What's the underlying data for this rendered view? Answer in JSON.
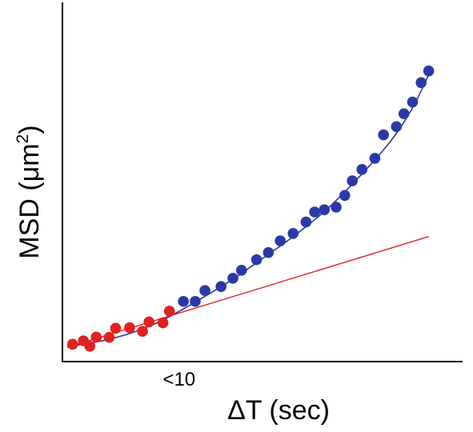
{
  "chart_data": {
    "type": "scatter",
    "xlabel": "ΔT (sec)",
    "ylabel_main": "MSD (μm",
    "ylabel_sup": "2",
    "ylabel_close": ")",
    "xlim": [
      0,
      34
    ],
    "ylim": [
      0,
      100
    ],
    "x_tick_labels": [
      {
        "x": 10.4,
        "label": "<10"
      }
    ],
    "series": [
      {
        "color": "#e32020",
        "points": [
          {
            "x": 0.5,
            "y": 1.6
          },
          {
            "x": 1.5,
            "y": 2.8
          },
          {
            "x": 2.1,
            "y": 0.9
          },
          {
            "x": 2.7,
            "y": 4.1
          },
          {
            "x": 3.9,
            "y": 4.0
          },
          {
            "x": 4.5,
            "y": 7.2
          },
          {
            "x": 5.8,
            "y": 7.4
          },
          {
            "x": 7.0,
            "y": 6.1
          },
          {
            "x": 7.6,
            "y": 9.4
          },
          {
            "x": 8.9,
            "y": 9.1
          },
          {
            "x": 9.5,
            "y": 13.2
          }
        ]
      },
      {
        "color": "#2b39a8",
        "points": [
          {
            "x": 10.8,
            "y": 16.6
          },
          {
            "x": 11.9,
            "y": 16.6
          },
          {
            "x": 12.8,
            "y": 20.4
          },
          {
            "x": 14.3,
            "y": 21.8
          },
          {
            "x": 15.4,
            "y": 24.7
          },
          {
            "x": 16.2,
            "y": 27.5
          },
          {
            "x": 17.6,
            "y": 31.2
          },
          {
            "x": 18.7,
            "y": 33.7
          },
          {
            "x": 19.8,
            "y": 37.8
          },
          {
            "x": 21.0,
            "y": 40.4
          },
          {
            "x": 22.2,
            "y": 44.4
          },
          {
            "x": 23.0,
            "y": 47.9
          },
          {
            "x": 23.9,
            "y": 48.7
          },
          {
            "x": 25.0,
            "y": 49.6
          },
          {
            "x": 25.8,
            "y": 53.7
          },
          {
            "x": 26.5,
            "y": 58.8
          },
          {
            "x": 27.4,
            "y": 62.8
          },
          {
            "x": 28.6,
            "y": 66.7
          },
          {
            "x": 29.4,
            "y": 74.9
          },
          {
            "x": 30.6,
            "y": 77.8
          },
          {
            "x": 31.3,
            "y": 82.3
          },
          {
            "x": 32.1,
            "y": 86.4
          },
          {
            "x": 32.9,
            "y": 93.2
          },
          {
            "x": 33.6,
            "y": 97.3
          }
        ]
      }
    ],
    "lines": [
      {
        "kind": "curve",
        "color": "#2b39a8",
        "points": [
          {
            "x": 0.0,
            "y": 0.8
          },
          {
            "x": 3.0,
            "y": 2.6
          },
          {
            "x": 6.0,
            "y": 5.6
          },
          {
            "x": 9.0,
            "y": 10.3
          },
          {
            "x": 12.0,
            "y": 16.6
          },
          {
            "x": 15.0,
            "y": 23.4
          },
          {
            "x": 18.0,
            "y": 31.2
          },
          {
            "x": 21.0,
            "y": 39.3
          },
          {
            "x": 24.0,
            "y": 48.4
          },
          {
            "x": 27.0,
            "y": 59.6
          },
          {
            "x": 30.0,
            "y": 72.4
          },
          {
            "x": 32.0,
            "y": 83.7
          },
          {
            "x": 33.6,
            "y": 95.9
          }
        ]
      },
      {
        "kind": "linear-fit",
        "color": "#e32020",
        "points": [
          {
            "x": 0.0,
            "y": 0.5
          },
          {
            "x": 33.6,
            "y": 39.3
          }
        ]
      }
    ],
    "grid": false
  }
}
